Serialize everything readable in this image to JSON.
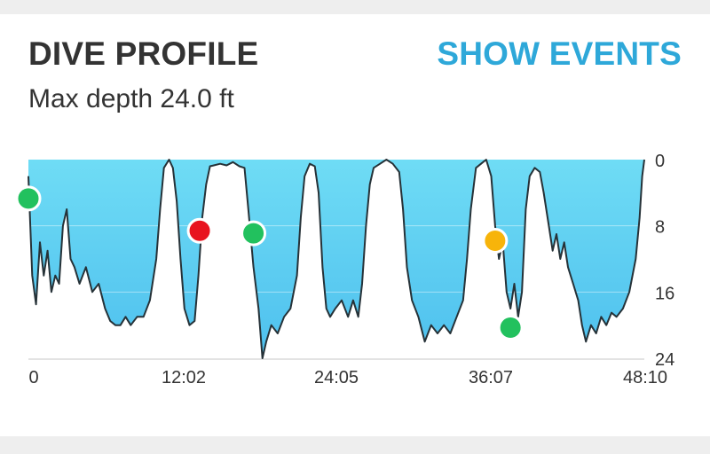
{
  "header": {
    "title": "DIVE PROFILE",
    "action_label": "SHOW EVENTS",
    "subtitle": "Max depth 24.0 ft"
  },
  "colors": {
    "fill_top": "#6fdcf5",
    "fill_bottom": "#4ec0ee",
    "line": "#263238",
    "grid": "#e3e3e3",
    "event_green": "#22c15e",
    "event_red": "#e8131f",
    "event_yellow": "#f7b40a"
  },
  "chart_data": {
    "type": "area",
    "xlabel": "",
    "ylabel": "",
    "x_unit": "minutes",
    "xlim": [
      0,
      48.17
    ],
    "ylim": [
      0,
      24
    ],
    "y_inverted": true,
    "grid": true,
    "x_ticks": [
      "0",
      "12:02",
      "24:05",
      "36:07",
      "48:10"
    ],
    "y_ticks": [
      "0",
      "8",
      "16",
      "24"
    ],
    "series": [
      {
        "depth_profile": [
          [
            0.0,
            2.0
          ],
          [
            0.3,
            14.0
          ],
          [
            0.6,
            17.5
          ],
          [
            0.9,
            10.0
          ],
          [
            1.2,
            14.0
          ],
          [
            1.5,
            11.0
          ],
          [
            1.8,
            16.0
          ],
          [
            2.1,
            14.0
          ],
          [
            2.4,
            15.0
          ],
          [
            2.7,
            8.0
          ],
          [
            3.0,
            6.0
          ],
          [
            3.3,
            12.0
          ],
          [
            3.6,
            13.0
          ],
          [
            4.0,
            15.0
          ],
          [
            4.5,
            13.0
          ],
          [
            5.0,
            16.0
          ],
          [
            5.5,
            15.0
          ],
          [
            6.0,
            18.0
          ],
          [
            6.4,
            19.5
          ],
          [
            6.8,
            20.0
          ],
          [
            7.2,
            20.0
          ],
          [
            7.6,
            19.0
          ],
          [
            8.0,
            20.0
          ],
          [
            8.5,
            19.0
          ],
          [
            9.0,
            19.0
          ],
          [
            9.5,
            17.0
          ],
          [
            10.0,
            12.0
          ],
          [
            10.3,
            6.0
          ],
          [
            10.6,
            1.0
          ],
          [
            11.0,
            0.0
          ],
          [
            11.3,
            1.0
          ],
          [
            11.6,
            5.0
          ],
          [
            11.9,
            12.0
          ],
          [
            12.2,
            18.0
          ],
          [
            12.6,
            20.0
          ],
          [
            13.0,
            19.5
          ],
          [
            13.3,
            14.0
          ],
          [
            13.6,
            7.0
          ],
          [
            13.9,
            3.0
          ],
          [
            14.2,
            0.8
          ],
          [
            14.5,
            0.7
          ],
          [
            15.0,
            0.5
          ],
          [
            15.5,
            0.7
          ],
          [
            16.0,
            0.3
          ],
          [
            16.5,
            0.8
          ],
          [
            16.9,
            1.0
          ],
          [
            17.2,
            6.0
          ],
          [
            17.6,
            13.0
          ],
          [
            18.0,
            18.0
          ],
          [
            18.3,
            24.0
          ],
          [
            18.6,
            22.0
          ],
          [
            19.0,
            20.0
          ],
          [
            19.5,
            21.0
          ],
          [
            20.0,
            19.0
          ],
          [
            20.5,
            18.0
          ],
          [
            21.0,
            14.0
          ],
          [
            21.3,
            7.0
          ],
          [
            21.6,
            2.0
          ],
          [
            22.0,
            0.5
          ],
          [
            22.4,
            0.8
          ],
          [
            22.7,
            4.0
          ],
          [
            23.0,
            13.0
          ],
          [
            23.3,
            18.0
          ],
          [
            23.6,
            19.0
          ],
          [
            24.0,
            18.0
          ],
          [
            24.5,
            17.0
          ],
          [
            25.0,
            19.0
          ],
          [
            25.4,
            17.0
          ],
          [
            25.8,
            19.0
          ],
          [
            26.1,
            15.0
          ],
          [
            26.4,
            8.0
          ],
          [
            26.7,
            3.0
          ],
          [
            27.0,
            1.0
          ],
          [
            27.5,
            0.5
          ],
          [
            28.0,
            0.0
          ],
          [
            28.5,
            0.5
          ],
          [
            29.0,
            1.5
          ],
          [
            29.3,
            6.0
          ],
          [
            29.6,
            13.0
          ],
          [
            30.0,
            17.0
          ],
          [
            30.5,
            19.0
          ],
          [
            31.0,
            22.0
          ],
          [
            31.5,
            20.0
          ],
          [
            32.0,
            21.0
          ],
          [
            32.5,
            20.0
          ],
          [
            33.0,
            21.0
          ],
          [
            33.5,
            19.0
          ],
          [
            34.0,
            17.0
          ],
          [
            34.3,
            12.0
          ],
          [
            34.6,
            6.0
          ],
          [
            35.0,
            1.0
          ],
          [
            35.4,
            0.5
          ],
          [
            35.8,
            0.0
          ],
          [
            36.2,
            2.0
          ],
          [
            36.5,
            8.0
          ],
          [
            36.8,
            12.0
          ],
          [
            37.1,
            10.0
          ],
          [
            37.4,
            16.0
          ],
          [
            37.7,
            18.0
          ],
          [
            38.0,
            15.0
          ],
          [
            38.3,
            19.0
          ],
          [
            38.6,
            16.0
          ],
          [
            38.9,
            6.0
          ],
          [
            39.2,
            2.0
          ],
          [
            39.6,
            1.0
          ],
          [
            40.0,
            1.5
          ],
          [
            40.3,
            4.0
          ],
          [
            40.7,
            8.0
          ],
          [
            41.0,
            11.0
          ],
          [
            41.3,
            9.0
          ],
          [
            41.6,
            12.0
          ],
          [
            41.9,
            10.0
          ],
          [
            42.2,
            13.0
          ],
          [
            42.6,
            15.0
          ],
          [
            43.0,
            17.0
          ],
          [
            43.3,
            20.0
          ],
          [
            43.6,
            22.0
          ],
          [
            44.0,
            20.0
          ],
          [
            44.4,
            21.0
          ],
          [
            44.8,
            19.0
          ],
          [
            45.2,
            20.0
          ],
          [
            45.6,
            18.5
          ],
          [
            46.0,
            19.0
          ],
          [
            46.5,
            18.0
          ],
          [
            47.0,
            16.0
          ],
          [
            47.5,
            12.0
          ],
          [
            47.8,
            7.0
          ],
          [
            48.0,
            2.0
          ],
          [
            48.17,
            0.0
          ]
        ]
      }
    ],
    "events": [
      {
        "type": "green",
        "time": 0.0,
        "depth": 4.7
      },
      {
        "type": "red",
        "time": 13.4,
        "depth": 8.6
      },
      {
        "type": "green",
        "time": 17.6,
        "depth": 8.9
      },
      {
        "type": "yellow",
        "time": 36.5,
        "depth": 9.8
      },
      {
        "type": "green",
        "time": 37.7,
        "depth": 20.3
      }
    ]
  }
}
